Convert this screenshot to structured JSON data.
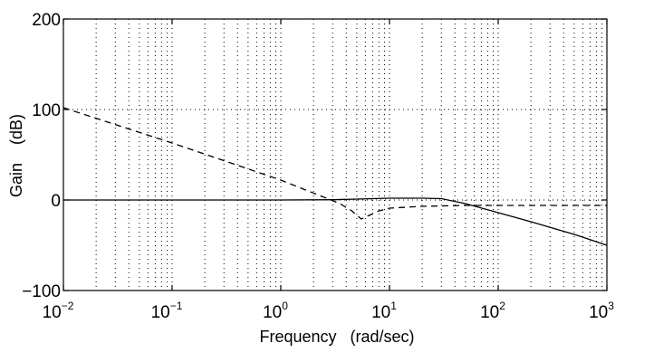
{
  "chart_data": {
    "type": "line",
    "title": "",
    "xlabel": "Frequency   (rad/sec)",
    "ylabel": "Gain    (dB)",
    "xscale": "log",
    "xlim": [
      0.01,
      1000
    ],
    "ylim": [
      -100,
      200
    ],
    "xticks": [
      {
        "value": 0.01,
        "base": "10",
        "exp": "−2"
      },
      {
        "value": 0.1,
        "base": "10",
        "exp": "−1"
      },
      {
        "value": 1,
        "base": "10",
        "exp": "0"
      },
      {
        "value": 10,
        "base": "10",
        "exp": "1"
      },
      {
        "value": 100,
        "base": "10",
        "exp": "2"
      },
      {
        "value": 1000,
        "base": "10",
        "exp": "3"
      }
    ],
    "yticks": [
      {
        "value": 200,
        "label": "200"
      },
      {
        "value": 100,
        "label": "100"
      },
      {
        "value": 0,
        "label": "0"
      },
      {
        "value": -100,
        "label": "−100"
      }
    ],
    "grid": true,
    "legend": "none",
    "series": [
      {
        "style": "solid",
        "color": "#000000",
        "points": [
          [
            0.01,
            0
          ],
          [
            1,
            0
          ],
          [
            3,
            0.3
          ],
          [
            5,
            1
          ],
          [
            10,
            2
          ],
          [
            20,
            2
          ],
          [
            30,
            1.5
          ],
          [
            50,
            -4
          ],
          [
            100,
            -14
          ],
          [
            200,
            -24
          ],
          [
            500,
            -38
          ],
          [
            1000,
            -50
          ]
        ]
      },
      {
        "style": "dashed",
        "color": "#000000",
        "points": [
          [
            0.01,
            102
          ],
          [
            0.1,
            63
          ],
          [
            1,
            22
          ],
          [
            2.5,
            3
          ],
          [
            3.5,
            -4
          ],
          [
            4.5,
            -12
          ],
          [
            5.5,
            -21
          ],
          [
            6.5,
            -17
          ],
          [
            8,
            -12
          ],
          [
            10,
            -9
          ],
          [
            20,
            -7
          ],
          [
            50,
            -6
          ],
          [
            100,
            -6
          ],
          [
            1000,
            -6
          ]
        ]
      }
    ]
  }
}
